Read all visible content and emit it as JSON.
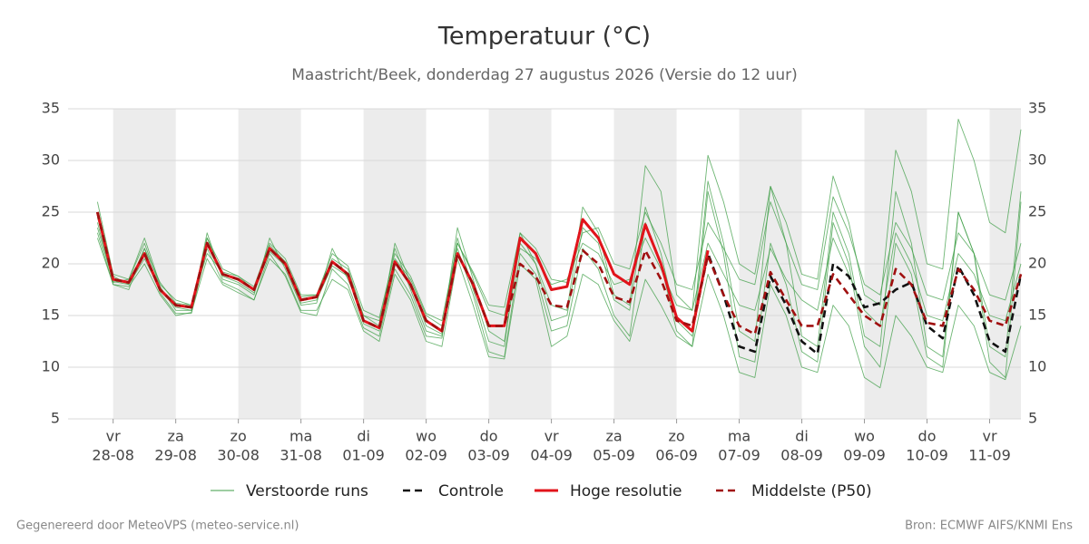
{
  "chart_data": {
    "type": "line",
    "title": "Temperatuur (°C)",
    "subtitle": "Maastricht/Beek, donderdag 27 augustus 2026 (Versie do 12 uur)",
    "footer_left": "Gegenereerd door MeteoVPS (meteo-service.nl)",
    "footer_right": "Bron: ECMWF AIFS/KNMI Ens",
    "xlim": [
      -0.72,
      14.5
    ],
    "ylim": [
      5,
      35
    ],
    "yticks": [
      5,
      10,
      15,
      20,
      25,
      30,
      35
    ],
    "grid": true,
    "xticks": [
      {
        "value": 0,
        "label": "vr",
        "date": "28-08"
      },
      {
        "value": 1,
        "label": "za",
        "date": "29-08"
      },
      {
        "value": 2,
        "label": "zo",
        "date": "30-08"
      },
      {
        "value": 3,
        "label": "ma",
        "date": "31-08"
      },
      {
        "value": 4,
        "label": "di",
        "date": "01-09"
      },
      {
        "value": 5,
        "label": "wo",
        "date": "02-09"
      },
      {
        "value": 6,
        "label": "do",
        "date": "03-09"
      },
      {
        "value": 7,
        "label": "vr",
        "date": "04-09"
      },
      {
        "value": 8,
        "label": "za",
        "date": "05-09"
      },
      {
        "value": 9,
        "label": "zo",
        "date": "06-09"
      },
      {
        "value": 10,
        "label": "ma",
        "date": "07-09"
      },
      {
        "value": 11,
        "label": "di",
        "date": "08-09"
      },
      {
        "value": 12,
        "label": "wo",
        "date": "09-09"
      },
      {
        "value": 13,
        "label": "do",
        "date": "10-09"
      },
      {
        "value": 14,
        "label": "vr",
        "date": "11-09"
      }
    ],
    "x": [
      -0.25,
      0,
      0.25,
      0.5,
      0.75,
      1,
      1.25,
      1.5,
      1.75,
      2,
      2.25,
      2.5,
      2.75,
      3,
      3.25,
      3.5,
      3.75,
      4,
      4.25,
      4.5,
      4.75,
      5,
      5.25,
      5.5,
      5.75,
      6,
      6.25,
      6.5,
      6.75,
      7,
      7.25,
      7.5,
      7.75,
      8,
      8.25,
      8.5,
      8.75,
      9,
      9.25,
      9.5,
      9.75,
      10,
      10.25,
      10.5,
      10.75,
      11,
      11.25,
      11.5,
      11.75,
      12,
      12.25,
      12.5,
      12.75,
      13,
      13.25,
      13.5,
      13.75,
      14,
      14.25,
      14.5
    ],
    "series": [
      {
        "name": "Verstoorde runs",
        "color": "#3e9e45",
        "style": "thin",
        "members": [
          [
            24,
            18.2,
            18.5,
            22,
            17.8,
            15.5,
            15.5,
            23,
            18.5,
            18,
            17,
            22.5,
            19.5,
            16,
            16.2,
            21.5,
            18.5,
            15,
            14,
            21.5,
            17.5,
            13.5,
            13,
            22.5,
            17.5,
            12.5,
            12,
            23,
            20,
            16,
            15.5,
            25.5,
            23,
            17,
            16,
            29.5,
            27,
            17,
            15.5,
            30.5,
            26,
            20,
            19,
            27.5,
            24,
            19,
            18.5,
            28.5,
            24,
            17,
            16,
            31,
            27,
            20,
            19.5,
            34,
            30,
            24,
            23,
            33
          ],
          [
            23,
            18,
            17.8,
            20,
            17,
            15,
            15.3,
            20.5,
            18,
            17.2,
            16.5,
            20.5,
            19,
            15.5,
            15.5,
            18.5,
            17.5,
            13.5,
            12.5,
            19,
            16.5,
            12.5,
            12,
            20.5,
            16,
            11,
            10.8,
            20,
            18.5,
            12,
            13,
            19,
            18,
            14.5,
            12.5,
            18.5,
            16,
            13,
            12,
            19,
            15,
            9.5,
            9,
            18,
            15,
            10,
            9.5,
            16,
            14,
            9,
            8,
            15,
            13,
            10,
            9.5,
            16,
            14,
            9.5,
            8.8,
            14
          ],
          [
            26,
            19,
            18.5,
            22.5,
            18,
            16.5,
            16,
            22.5,
            19.5,
            18.8,
            17.8,
            22,
            20.5,
            17,
            17,
            20.5,
            19.5,
            15,
            14.5,
            20.5,
            18.5,
            15,
            14,
            22,
            19,
            15.5,
            15,
            21.5,
            20.5,
            18,
            18.5,
            22,
            21,
            18,
            18.5,
            22.5,
            19.5,
            16,
            15.5,
            22,
            19,
            16,
            15.5,
            21.5,
            18.5,
            16.5,
            15.5,
            22.5,
            19,
            15.5,
            14,
            23,
            20,
            15,
            14.5,
            21,
            19,
            15,
            14.5,
            20
          ],
          [
            22.5,
            18,
            17.5,
            21.5,
            17.2,
            15.2,
            15.2,
            21.5,
            18.2,
            17.5,
            16.5,
            21,
            18.8,
            15.3,
            15,
            19.5,
            18,
            13.8,
            13,
            19.5,
            17,
            13,
            12.8,
            21.5,
            17,
            11.5,
            11,
            21,
            19,
            13.5,
            14,
            21.5,
            19.5,
            15,
            13,
            24,
            20,
            13.5,
            12,
            27,
            21,
            11,
            10.5,
            22,
            18,
            11.5,
            10.5,
            24,
            20,
            12,
            10,
            22,
            19,
            11,
            10,
            25,
            21,
            10.5,
            9,
            26
          ],
          [
            24.5,
            18.8,
            18,
            21.5,
            18.2,
            16.2,
            16,
            21,
            19.2,
            18.8,
            17.5,
            21.8,
            20.2,
            16.8,
            17,
            21,
            19.8,
            15.5,
            14.8,
            21,
            18.8,
            15.2,
            14.5,
            22,
            19.2,
            16,
            15.8,
            23,
            21.5,
            18.5,
            18.2,
            23,
            23.5,
            20,
            19.5,
            25,
            22,
            18,
            17.5,
            24,
            21.5,
            18.5,
            18,
            26,
            22,
            18,
            17.5,
            26.5,
            23,
            18,
            17,
            24,
            21.5,
            17,
            16.5,
            23,
            21,
            17,
            16.5,
            22
          ],
          [
            23.5,
            18.3,
            18,
            20.5,
            17.5,
            15.8,
            15.5,
            22.5,
            18.8,
            18.2,
            17.2,
            21.2,
            19.8,
            16.2,
            16.5,
            19.8,
            18.8,
            14.2,
            13.5,
            22,
            18.2,
            14,
            13.2,
            23.5,
            18.5,
            13.5,
            12.5,
            22,
            20,
            14.5,
            15,
            23.5,
            22,
            16.5,
            15.5,
            25.5,
            21,
            14.5,
            13,
            28,
            22,
            13.5,
            12.5,
            27.5,
            22,
            13,
            12,
            25,
            21,
            13,
            12,
            27,
            22,
            12,
            11,
            25,
            21,
            12,
            11,
            27
          ]
        ]
      },
      {
        "name": "Controle",
        "color": "#111111",
        "style": "dashed",
        "values": [
          25,
          18.5,
          18.2,
          21,
          17.5,
          16,
          15.8,
          22,
          19,
          18.5,
          17.5,
          21.5,
          20,
          16.5,
          16.8,
          20.2,
          19,
          14.5,
          13.8,
          20.2,
          18,
          14.5,
          13.5,
          21,
          18,
          14,
          14,
          22.5,
          21,
          17.5,
          17.8,
          24.3,
          22.5,
          19,
          18,
          23.8,
          20,
          14.8,
          13.5,
          21,
          17,
          12,
          11.5,
          18.8,
          16,
          12.5,
          11.3,
          20,
          18.8,
          15.8,
          16.2,
          17.5,
          18.2,
          14,
          12.8,
          19.8,
          17,
          12.5,
          11.5,
          19
        ]
      },
      {
        "name": "Hoge resolutie",
        "color": "#e2141b",
        "style": "solid",
        "values": [
          25,
          18.5,
          18.2,
          21,
          17.5,
          16,
          15.8,
          22,
          19,
          18.5,
          17.5,
          21.5,
          20,
          16.5,
          16.8,
          20.2,
          19,
          14.5,
          13.8,
          20.2,
          18,
          14.5,
          13.5,
          21,
          18,
          14,
          14,
          22.5,
          21,
          17.5,
          17.8,
          24.3,
          22.5,
          19,
          18,
          23.8,
          20,
          14.8,
          13.5,
          21.3,
          null,
          null,
          null,
          null,
          null,
          null,
          null,
          null,
          null,
          null,
          null,
          null,
          null,
          null,
          null,
          null,
          null,
          null,
          null,
          null
        ]
      },
      {
        "name": "Middelste (P50)",
        "color": "#a01010",
        "style": "dashed",
        "values": [
          25,
          18.5,
          18.2,
          21,
          17.5,
          16,
          15.8,
          22,
          19,
          18.5,
          17.5,
          21.5,
          20,
          16.5,
          16.8,
          20.2,
          19,
          14.5,
          13.8,
          20.2,
          18,
          14.5,
          13.5,
          21,
          18,
          14,
          14,
          20,
          18.8,
          16,
          15.8,
          21.3,
          20,
          16.8,
          16.3,
          21.3,
          18.5,
          14.5,
          14,
          20.8,
          17,
          14,
          13.2,
          19.2,
          16.5,
          14,
          14,
          19,
          17,
          15,
          14,
          19.5,
          18,
          14.3,
          14,
          19.5,
          17.5,
          14.5,
          14,
          19
        ]
      }
    ]
  }
}
